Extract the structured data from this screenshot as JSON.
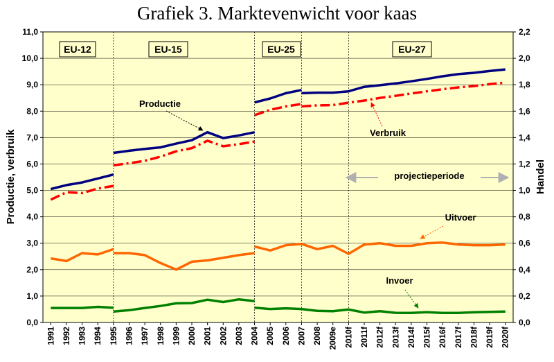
{
  "title": "Grafiek 3. Marktevenwicht voor kaas",
  "chart_data": {
    "type": "line",
    "title": "Grafiek 3. Marktevenwicht voor kaas",
    "ylabel": "Productie, verbruik",
    "y2label": "Handel",
    "ylim": [
      0,
      11
    ],
    "y2lim": [
      0,
      2.2
    ],
    "yticks": [
      "0,0",
      "1,0",
      "2,0",
      "3,0",
      "4,0",
      "5,0",
      "6,0",
      "7,0",
      "8,0",
      "9,0",
      "10,0",
      "11,0"
    ],
    "y2ticks": [
      "0,0",
      "0,2",
      "0,4",
      "0,6",
      "0,8",
      "1,0",
      "1,2",
      "1,4",
      "1,6",
      "1,8",
      "2,0",
      "2,2"
    ],
    "categories": [
      "1991",
      "1992",
      "1993",
      "1994",
      "1995",
      "1996",
      "1997",
      "1998",
      "1999",
      "2000",
      "2001",
      "2002",
      "2003",
      "2004",
      "2005",
      "2006",
      "2007",
      "2008",
      "2009e",
      "2010f",
      "2011f",
      "2012f",
      "2013f",
      "2014f",
      "2015f",
      "2016f",
      "2017f",
      "2018f",
      "2019f",
      "2020f"
    ],
    "grid": "horizontal",
    "periods": [
      "EU-12",
      "EU-15",
      "EU-25",
      "EU-27"
    ],
    "projection_label": "projectieperiode",
    "series": [
      {
        "name": "Productie",
        "axis": "left",
        "color": "#000080",
        "style": "solid",
        "segments": [
          {
            "start": 0,
            "values": [
              5.05,
              5.2,
              5.3,
              5.45,
              5.6
            ]
          },
          {
            "start": 4,
            "values": [
              6.42,
              6.5,
              6.57,
              6.63,
              6.77,
              6.9,
              7.2,
              6.98,
              7.08,
              7.2
            ]
          },
          {
            "start": 13,
            "values": [
              8.33,
              8.48,
              8.68,
              8.8
            ]
          },
          {
            "start": 16,
            "values": [
              8.68,
              8.7,
              8.7,
              8.75,
              8.92,
              8.98,
              9.05,
              9.13,
              9.22,
              9.32,
              9.4,
              9.45,
              9.52,
              9.58
            ]
          }
        ]
      },
      {
        "name": "Verbruik",
        "axis": "left",
        "color": "#ff0000",
        "style": "dashdot",
        "segments": [
          {
            "start": 0,
            "values": [
              4.65,
              4.93,
              4.9,
              5.07,
              5.17
            ]
          },
          {
            "start": 4,
            "values": [
              5.95,
              6.03,
              6.12,
              6.28,
              6.48,
              6.6,
              6.88,
              6.67,
              6.75,
              6.85
            ]
          },
          {
            "start": 13,
            "values": [
              7.85,
              8.05,
              8.18,
              8.27
            ]
          },
          {
            "start": 16,
            "values": [
              8.18,
              8.22,
              8.23,
              8.32,
              8.4,
              8.5,
              8.58,
              8.67,
              8.75,
              8.83,
              8.9,
              8.95,
              9.02,
              9.08
            ]
          }
        ]
      },
      {
        "name": "Uitvoer",
        "axis": "right",
        "color": "#ff6600",
        "style": "solid",
        "segments": [
          {
            "start": 0,
            "values": [
              0.485,
              0.465,
              0.525,
              0.515,
              0.555
            ]
          },
          {
            "start": 4,
            "values": [
              0.525,
              0.525,
              0.51,
              0.45,
              0.4,
              0.46,
              0.47,
              0.49,
              0.51,
              0.525
            ]
          },
          {
            "start": 13,
            "values": [
              0.575,
              0.545,
              0.585,
              0.595
            ]
          },
          {
            "start": 16,
            "values": [
              0.595,
              0.555,
              0.58,
              0.52,
              0.59,
              0.6,
              0.58,
              0.58,
              0.6,
              0.605,
              0.59,
              0.585,
              0.585,
              0.59
            ]
          }
        ]
      },
      {
        "name": "Invoer",
        "axis": "right",
        "color": "#008000",
        "style": "solid",
        "segments": [
          {
            "start": 0,
            "values": [
              0.11,
              0.11,
              0.11,
              0.118,
              0.112
            ]
          },
          {
            "start": 4,
            "values": [
              0.083,
              0.093,
              0.11,
              0.125,
              0.145,
              0.147,
              0.172,
              0.155,
              0.175,
              0.162
            ]
          },
          {
            "start": 13,
            "values": [
              0.112,
              0.102,
              0.107,
              0.102
            ]
          },
          {
            "start": 16,
            "values": [
              0.102,
              0.088,
              0.085,
              0.098,
              0.075,
              0.085,
              0.073,
              0.072,
              0.078,
              0.072,
              0.072,
              0.077,
              0.08,
              0.083
            ]
          }
        ]
      }
    ]
  }
}
